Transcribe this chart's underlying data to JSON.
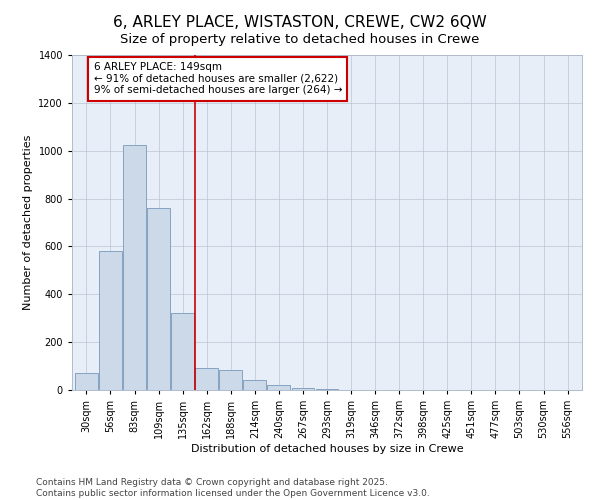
{
  "title": "6, ARLEY PLACE, WISTASTON, CREWE, CW2 6QW",
  "subtitle": "Size of property relative to detached houses in Crewe",
  "xlabel": "Distribution of detached houses by size in Crewe",
  "ylabel": "Number of detached properties",
  "categories": [
    "30sqm",
    "56sqm",
    "83sqm",
    "109sqm",
    "135sqm",
    "162sqm",
    "188sqm",
    "214sqm",
    "240sqm",
    "267sqm",
    "293sqm",
    "319sqm",
    "346sqm",
    "372sqm",
    "398sqm",
    "425sqm",
    "451sqm",
    "477sqm",
    "503sqm",
    "530sqm",
    "556sqm"
  ],
  "values": [
    70,
    580,
    1025,
    760,
    320,
    90,
    85,
    40,
    20,
    10,
    3,
    0,
    0,
    0,
    0,
    0,
    0,
    0,
    0,
    0,
    0
  ],
  "bar_color": "#ccd9e8",
  "bar_edge_color": "#7799bb",
  "reference_line_x": 4.5,
  "reference_line_color": "#cc0000",
  "annotation_line1": "6 ARLEY PLACE: 149sqm",
  "annotation_line2": "← 91% of detached houses are smaller (2,622)",
  "annotation_line3": "9% of semi-detached houses are larger (264) →",
  "annotation_box_color": "#cc0000",
  "ylim": [
    0,
    1400
  ],
  "yticks": [
    0,
    200,
    400,
    600,
    800,
    1000,
    1200,
    1400
  ],
  "bg_color": "#ffffff",
  "plot_bg_color": "#e8eef8",
  "grid_color": "#b0bccc",
  "footer": "Contains HM Land Registry data © Crown copyright and database right 2025.\nContains public sector information licensed under the Open Government Licence v3.0.",
  "title_fontsize": 11,
  "subtitle_fontsize": 9.5,
  "axis_label_fontsize": 8,
  "tick_fontsize": 7,
  "annotation_fontsize": 7.5,
  "footer_fontsize": 6.5
}
